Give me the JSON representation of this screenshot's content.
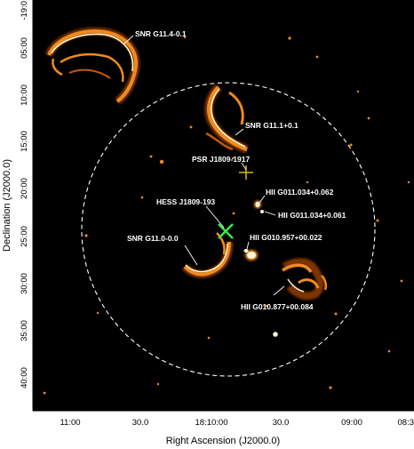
{
  "figure": {
    "x_axis_title": "Right Ascension (J2000.0)",
    "y_axis_title": "Declination (J2000.0)",
    "x_ticks": [
      "11:00",
      "30.0",
      "18:10:00",
      "30.0",
      "09:00",
      "08:3"
    ],
    "y_ticks": [
      "-19:0",
      "05:00",
      "10:00",
      "15:00",
      "20:00",
      "25:00",
      "30:00",
      "35:00",
      "40:00"
    ],
    "labels": {
      "snr_g114": "SNR G11.4-0.1",
      "snr_g111": "SNR G11.1+0.1",
      "psr": "PSR J1809-1917",
      "hess": "HESS J1809-193",
      "hii_062": "HII G011.034+0.062",
      "hii_061": "HII G011.034+0.061",
      "hii_022": "HII G010.957+00.022",
      "snr_g110": "SNR G11.0-0.0",
      "hii_084": "HII G010.877+00.084"
    },
    "colors": {
      "background": "#000000",
      "emission_bright": "#fff6d8",
      "emission_mid": "#f08a1e",
      "emission_faint": "#8a3a05",
      "hess_marker": "#37e84a",
      "psr_marker": "#e6c619",
      "circle": "#ffffff"
    },
    "circle_style": "dashed"
  }
}
